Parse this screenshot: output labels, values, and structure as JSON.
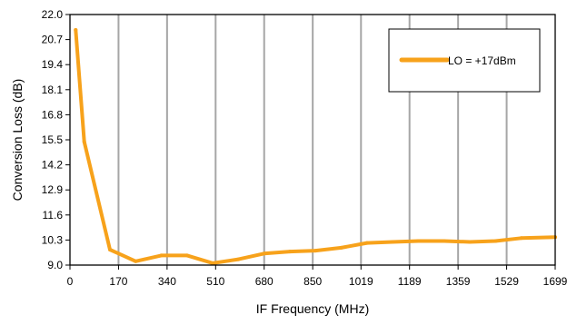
{
  "chart_data": {
    "type": "line",
    "title": "",
    "xlabel": "IF Frequency (MHz)",
    "ylabel": "Conversion Loss (dB)",
    "xlim": [
      0,
      1699
    ],
    "ylim": [
      9.0,
      22.0
    ],
    "x_ticks": [
      0,
      170,
      340,
      510,
      680,
      850,
      1019,
      1189,
      1359,
      1529,
      1699
    ],
    "x_tick_labels": [
      "0",
      "170",
      "340",
      "510",
      "680",
      "850",
      "1019",
      "1189",
      "1359",
      "1529",
      "1699"
    ],
    "y_ticks": [
      9.0,
      10.3,
      11.6,
      12.9,
      14.2,
      15.5,
      16.8,
      18.1,
      19.4,
      20.7,
      22.0
    ],
    "y_tick_labels": [
      "9.0",
      "10.3",
      "11.6",
      "12.9",
      "14.2",
      "15.5",
      "16.8",
      "18.1",
      "19.4",
      "20.7",
      "22.0"
    ],
    "grid": {
      "vertical": true,
      "horizontal": false
    },
    "legend": {
      "position": "top-right"
    },
    "series": [
      {
        "name": "LO = +17dBm",
        "color": "#F7A21B",
        "x": [
          20,
          50,
          140,
          230,
          320,
          410,
          500,
          590,
          680,
          770,
          860,
          950,
          1040,
          1130,
          1220,
          1310,
          1400,
          1490,
          1580,
          1699
        ],
        "values": [
          21.2,
          15.4,
          9.8,
          9.2,
          9.5,
          9.5,
          9.1,
          9.3,
          9.6,
          9.7,
          9.75,
          9.9,
          10.15,
          10.2,
          10.25,
          10.25,
          10.2,
          10.25,
          10.4,
          10.45
        ]
      }
    ]
  }
}
